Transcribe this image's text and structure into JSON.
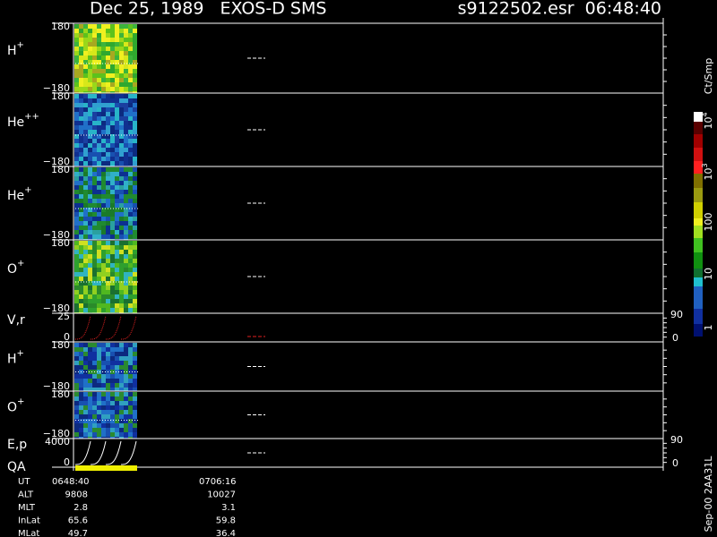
{
  "header": {
    "title": "Dec 25, 1989   EXOS-D SMS",
    "file": "s9122502.esr  06:48:40"
  },
  "panels": [
    {
      "label": "H",
      "sup": "+",
      "top": "180",
      "bottom": "−180"
    },
    {
      "label": "He",
      "sup": "++",
      "top": "180",
      "bottom": "−180"
    },
    {
      "label": "He",
      "sup": "+",
      "top": "180",
      "bottom": "−180"
    },
    {
      "label": "O",
      "sup": "+",
      "top": "180",
      "bottom": "−180"
    },
    {
      "label": "V,r",
      "top": "25",
      "bottom": "0",
      "right_top": "90",
      "right_bottom": "0"
    },
    {
      "label": "H",
      "sup": "+",
      "top": "180",
      "bottom": "−180"
    },
    {
      "label": "O",
      "sup": "+",
      "top": "180",
      "bottom": "−180"
    },
    {
      "label": "E,p",
      "extra": "QA",
      "top": "4000",
      "bottom": "0",
      "right_top": "90",
      "right_bottom": "0"
    }
  ],
  "colorbar": {
    "unit": "Ct/Smp",
    "labels": [
      {
        "base": "10",
        "sup": "4"
      },
      {
        "base": "10",
        "sup": "3"
      },
      {
        "base": "100"
      },
      {
        "base": "10"
      },
      {
        "base": "1"
      }
    ]
  },
  "footer": {
    "rows": [
      [
        "UT",
        "0648:40",
        "0706:16"
      ],
      [
        "ALT",
        "9808",
        "10027"
      ],
      [
        "MLT",
        "2.8",
        "3.1"
      ],
      [
        "InLat",
        "65.6",
        "59.8"
      ],
      [
        "MLat",
        "49.7",
        "36.4"
      ]
    ]
  },
  "stamp": "Sep-00 2AA31L"
}
